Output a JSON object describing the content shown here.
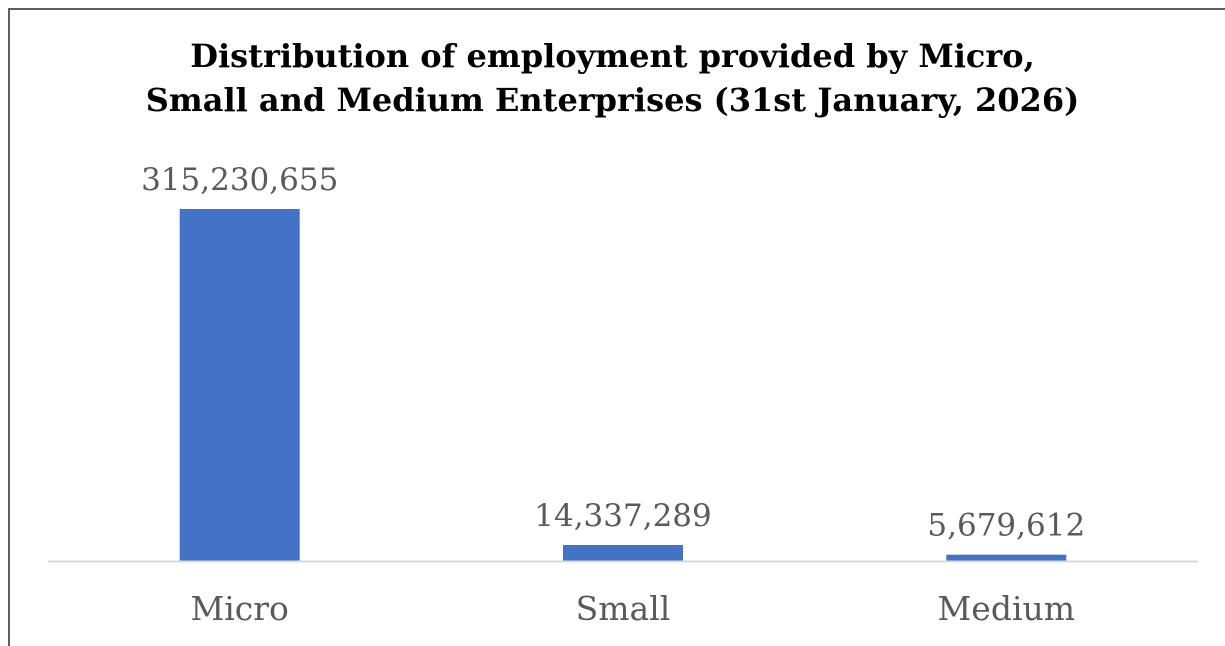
{
  "chart_data": {
    "type": "bar",
    "title_lines": [
      "Distribution of employment provided by Micro,",
      "Small and Medium Enterprises (31st January, 2026)"
    ],
    "categories": [
      "Micro",
      "Small",
      "Medium"
    ],
    "values": [
      315230655,
      14337289,
      5679612
    ],
    "data_labels": [
      "315,230,655",
      "14,337,289",
      "5,679,612"
    ],
    "xlabel": "",
    "ylabel": "",
    "ylim": [
      0,
      315230655
    ],
    "grid": false,
    "legend": "none",
    "bar_color": "#4472c4",
    "axis_color": "#d9d9d9",
    "text_color": "#5a5a5a"
  }
}
